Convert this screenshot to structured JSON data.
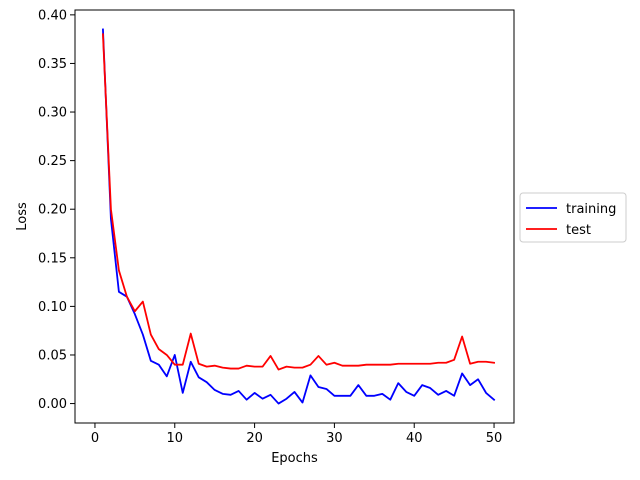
{
  "chart_data": {
    "type": "line",
    "title": "",
    "xlabel": "Epochs",
    "ylabel": "Loss",
    "xlim": [
      -2.5,
      52.5
    ],
    "ylim": [
      -0.02,
      0.405
    ],
    "xticks": [
      0,
      10,
      20,
      30,
      40,
      50
    ],
    "xtick_labels": [
      "0",
      "10",
      "20",
      "30",
      "40",
      "50"
    ],
    "yticks": [
      0.0,
      0.05,
      0.1,
      0.15,
      0.2,
      0.25,
      0.3,
      0.35,
      0.4
    ],
    "ytick_labels": [
      "0.00",
      "0.05",
      "0.10",
      "0.15",
      "0.20",
      "0.25",
      "0.30",
      "0.35",
      "0.40"
    ],
    "grid": false,
    "legend": "right, outside the plot area",
    "x": [
      1,
      2,
      3,
      4,
      5,
      6,
      7,
      8,
      9,
      10,
      11,
      12,
      13,
      14,
      15,
      16,
      17,
      18,
      19,
      20,
      21,
      22,
      23,
      24,
      25,
      26,
      27,
      28,
      29,
      30,
      31,
      32,
      33,
      34,
      35,
      36,
      37,
      38,
      39,
      40,
      41,
      42,
      43,
      44,
      45,
      46,
      47,
      48,
      49,
      50
    ],
    "series": [
      {
        "name": "training",
        "color": "#0000ff",
        "values": [
          0.385,
          0.19,
          0.115,
          0.11,
          0.092,
          0.071,
          0.044,
          0.04,
          0.028,
          0.05,
          0.011,
          0.043,
          0.027,
          0.022,
          0.014,
          0.01,
          0.009,
          0.013,
          0.004,
          0.011,
          0.005,
          0.009,
          0.0,
          0.005,
          0.012,
          0.001,
          0.029,
          0.017,
          0.015,
          0.008,
          0.008,
          0.008,
          0.019,
          0.008,
          0.008,
          0.01,
          0.004,
          0.021,
          0.012,
          0.008,
          0.019,
          0.016,
          0.009,
          0.013,
          0.008,
          0.031,
          0.019,
          0.025,
          0.011,
          0.004
        ]
      },
      {
        "name": "test",
        "color": "#ff0000",
        "values": [
          0.38,
          0.2,
          0.137,
          0.11,
          0.095,
          0.105,
          0.071,
          0.056,
          0.05,
          0.04,
          0.04,
          0.072,
          0.041,
          0.038,
          0.039,
          0.037,
          0.036,
          0.036,
          0.039,
          0.038,
          0.038,
          0.049,
          0.035,
          0.038,
          0.037,
          0.037,
          0.04,
          0.049,
          0.04,
          0.042,
          0.039,
          0.039,
          0.039,
          0.04,
          0.04,
          0.04,
          0.04,
          0.041,
          0.041,
          0.041,
          0.041,
          0.041,
          0.042,
          0.042,
          0.045,
          0.069,
          0.041,
          0.043,
          0.043,
          0.042
        ]
      }
    ]
  }
}
